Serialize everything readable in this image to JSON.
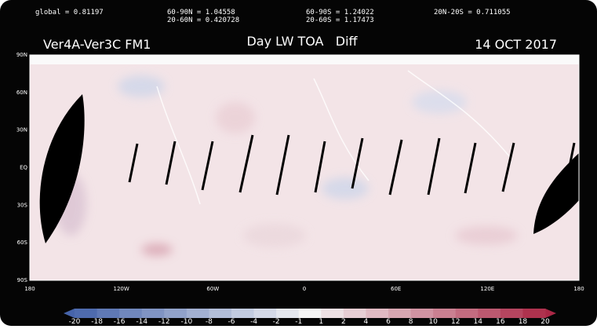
{
  "header": {
    "stats": [
      "global = 0.81197",
      "60-90N = 1.04558",
      "20-60N = 0.420728",
      "60-90S = 1.24022",
      "20-60S = 1.17473",
      "20N-20S = 0.711055"
    ],
    "left_title": "Ver4A-Ver3C FM1",
    "center_title": "Day LW TOA   Diff",
    "date": "14 OCT 2017"
  },
  "map": {
    "lat_labels": [
      "90N",
      "60N",
      "30N",
      "EQ",
      "30S",
      "60S",
      "90S"
    ],
    "lon_labels": [
      "180",
      "120W",
      "60W",
      "0",
      "60E",
      "120E",
      "180"
    ]
  },
  "colorbar": {
    "ticks": [
      -20,
      -18,
      -16,
      -14,
      -12,
      -10,
      -8,
      -6,
      -4,
      -2,
      -1,
      1,
      2,
      4,
      6,
      8,
      10,
      12,
      14,
      16,
      18,
      20
    ]
  }
}
